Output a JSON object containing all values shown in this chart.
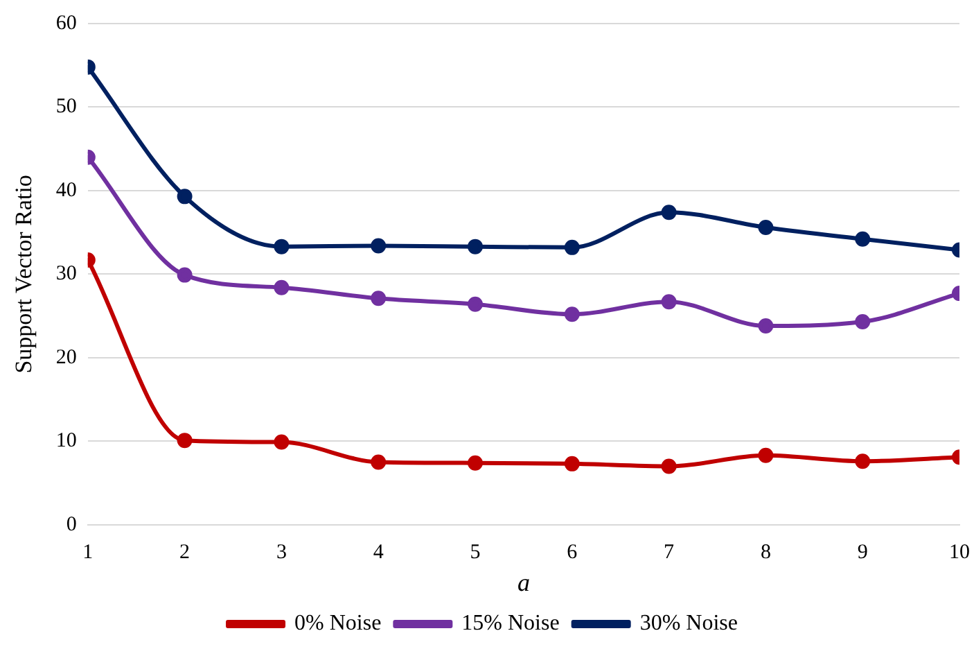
{
  "chart_data": {
    "type": "line",
    "xlabel": "a",
    "ylabel": "Support Vector Ratio",
    "x": [
      1,
      2,
      3,
      4,
      5,
      6,
      7,
      8,
      9,
      10
    ],
    "xlim": [
      1,
      10
    ],
    "xticks": [
      1,
      2,
      3,
      4,
      5,
      6,
      7,
      8,
      9,
      10
    ],
    "ylim": [
      0,
      60
    ],
    "yticks": [
      0,
      10,
      20,
      30,
      40,
      50,
      60
    ],
    "grid": "y",
    "legend": "bottom",
    "marker": "circle",
    "line_style": "solid",
    "series": [
      {
        "name": "0% Noise",
        "color": "#c00000",
        "values": [
          31.7,
          10.1,
          9.9,
          7.5,
          7.4,
          7.3,
          7.0,
          8.3,
          7.6,
          8.1
        ]
      },
      {
        "name": "15% Noise",
        "color": "#7030a0",
        "values": [
          44.0,
          29.9,
          28.4,
          27.1,
          26.4,
          25.2,
          26.7,
          23.8,
          24.3,
          27.7
        ]
      },
      {
        "name": "30% Noise",
        "color": "#002060",
        "values": [
          54.8,
          39.3,
          33.3,
          33.4,
          33.3,
          33.2,
          37.4,
          35.6,
          34.2,
          32.9
        ]
      }
    ]
  }
}
